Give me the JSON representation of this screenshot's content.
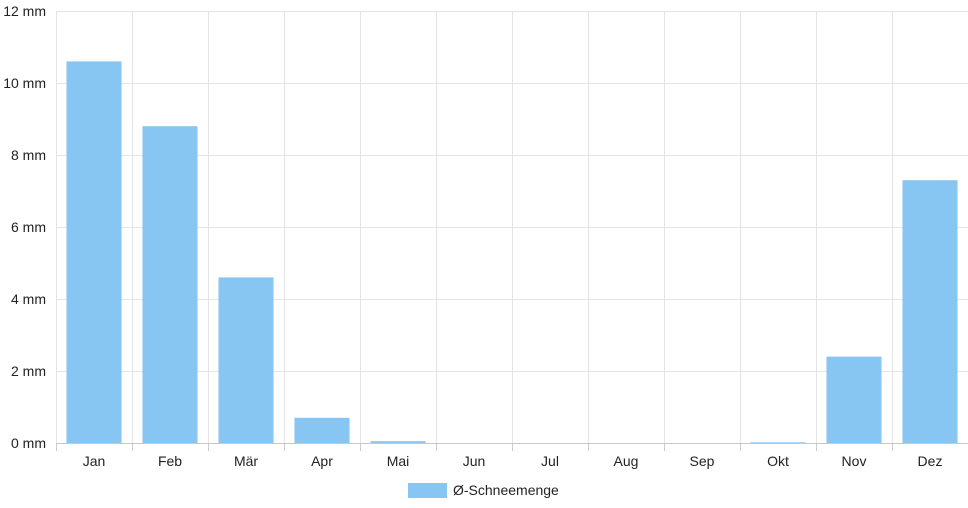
{
  "chart_data": {
    "type": "bar",
    "categories": [
      "Jan",
      "Feb",
      "Mär",
      "Apr",
      "Mai",
      "Jun",
      "Jul",
      "Aug",
      "Sep",
      "Okt",
      "Nov",
      "Dez"
    ],
    "series": [
      {
        "name": "Ø-Schneemenge",
        "values": [
          10.6,
          8.8,
          4.6,
          0.7,
          0.05,
          0,
          0,
          0,
          0,
          0.02,
          2.4,
          7.3
        ],
        "color": "#87c6f2"
      }
    ],
    "ylim": [
      0,
      12
    ],
    "yticks": [
      0,
      2,
      4,
      6,
      8,
      10,
      12
    ],
    "ytick_labels": [
      "0 mm",
      "2 mm",
      "4 mm",
      "6 mm",
      "8 mm",
      "10 mm",
      "12 mm"
    ],
    "grid": true,
    "legend_position": "bottom-center"
  }
}
